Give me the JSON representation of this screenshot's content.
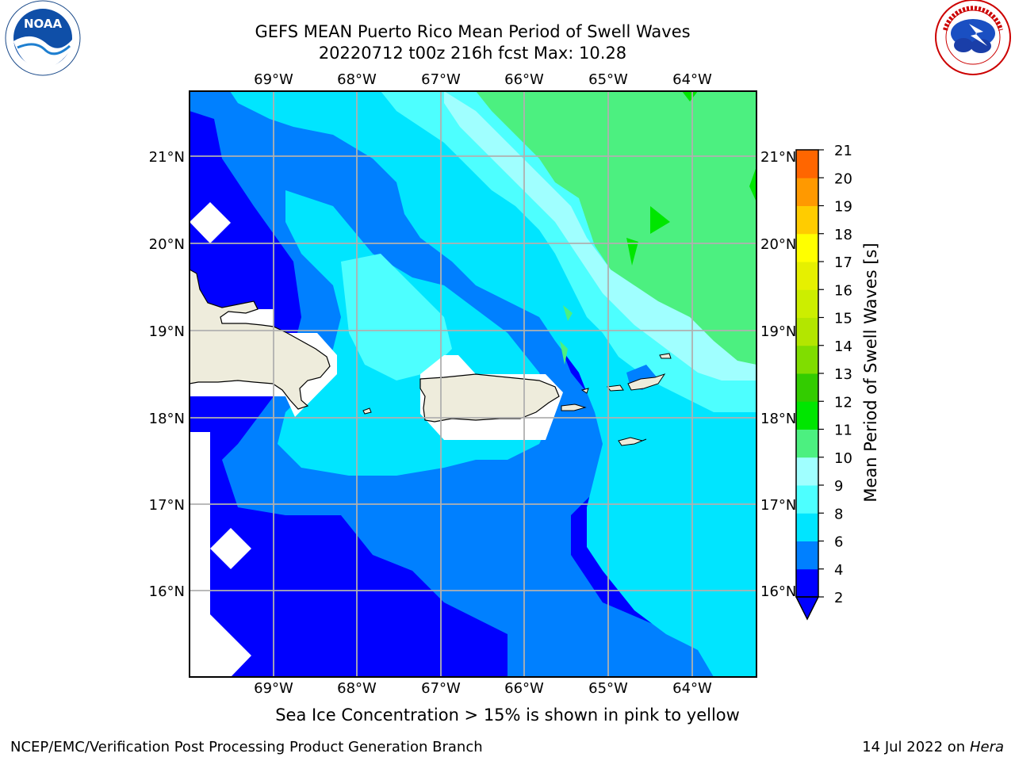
{
  "header": {
    "title_line1": "GEFS MEAN Puerto Rico Mean Period of Swell Waves",
    "title_line2": "20220712 t00z 216h fcst   Max: 10.28"
  },
  "logos": {
    "noaa": {
      "text": "NOAA",
      "icon": "noaa-logo-icon"
    },
    "nws": {
      "icon": "nws-logo-icon"
    }
  },
  "map": {
    "lon_labels": [
      "69°W",
      "68°W",
      "67°W",
      "66°W",
      "65°W",
      "64°W"
    ],
    "lat_labels": [
      "21°N",
      "20°N",
      "19°N",
      "18°N",
      "17°N",
      "16°N"
    ]
  },
  "colorbar": {
    "label": "Mean Period of Swell Waves [s]",
    "ticks": [
      "2",
      "4",
      "6",
      "8",
      "9",
      "10",
      "11",
      "12",
      "13",
      "14",
      "15",
      "16",
      "17",
      "18",
      "19",
      "20",
      "21"
    ],
    "colors": [
      "#0000ff",
      "#0080ff",
      "#00e5ff",
      "#4dffff",
      "#a0ffff",
      "#4cf080",
      "#00e600",
      "#33cc00",
      "#80dd00",
      "#b3e600",
      "#ccee00",
      "#e6f000",
      "#ffff00",
      "#ffcc00",
      "#ff9900",
      "#ff6600",
      "#ff3300",
      "#ff0000"
    ]
  },
  "note": "Sea Ice Concentration > 15% is shown in pink to yellow",
  "footer": {
    "left": "NCEP/EMC/Verification Post Processing Product Generation Branch",
    "date": "14 Jul 2022 on ",
    "host": "Hera"
  }
}
